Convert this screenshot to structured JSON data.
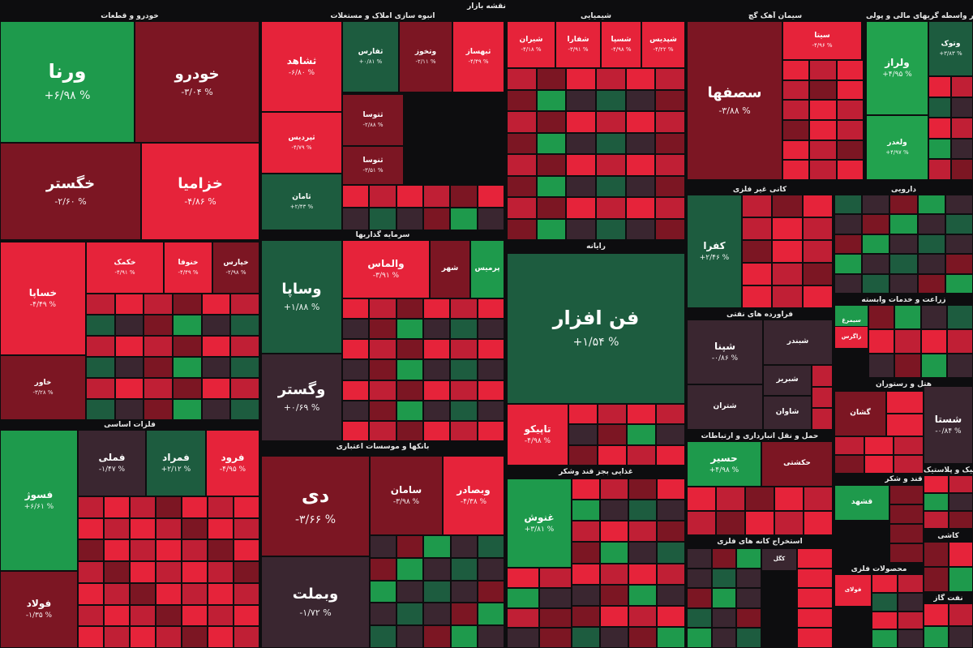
{
  "page_title": "نقشه بازار",
  "chart_data": {
    "type": "treemap",
    "title": "نقشه بازار",
    "colors": {
      "up_strong": "#1e9a4c",
      "up_light": "#22a24e",
      "up_dark": "#1d5c3f",
      "down_strong": "#e6233a",
      "down_mid": "#c01f35",
      "down_dark": "#7c1623",
      "neutral": "#3a2630"
    },
    "sectors": [
      {
        "name": "خودرو و قطعات"
      },
      {
        "name": "انبوه سازی املاک و مستغلات"
      },
      {
        "name": "شیمیایی"
      },
      {
        "name": "سیمان آهک گچ"
      },
      {
        "name": "سایر واسطه گریهای مالی و پولی"
      },
      {
        "name": "سرمایه گذاریها"
      },
      {
        "name": "رایانه"
      },
      {
        "name": "کانی غیر فلزی"
      },
      {
        "name": "دارویی"
      },
      {
        "name": "فلزات اساسی"
      },
      {
        "name": "بانکها و موسسات اعتباری"
      },
      {
        "name": "فراورده های نفتی"
      },
      {
        "name": "زراعت و خدمات وابسته"
      },
      {
        "name": "هتل و رستوران"
      },
      {
        "name": "غذایی بجز قند وشکر"
      },
      {
        "name": "حمل و نقل انبارداری و ارتباطات"
      },
      {
        "name": "قند و شکر"
      },
      {
        "name": "لاستیک و پلاستیک"
      },
      {
        "name": "استخراج کانه های فلزی"
      },
      {
        "name": "محصولات فلزی"
      },
      {
        "name": "کاشی"
      },
      {
        "name": "نفت گاز"
      }
    ],
    "tiles": [
      {
        "name": "ورنا",
        "change": "+۶/۹۸ %",
        "tone": "up_strong"
      },
      {
        "name": "خودرو",
        "change": "-۳/۰۴ %",
        "tone": "down_dark"
      },
      {
        "name": "خگستر",
        "change": "-۲/۶۰ %",
        "tone": "down_dark"
      },
      {
        "name": "خزامیا",
        "change": "-۴/۸۶ %",
        "tone": "down_strong"
      },
      {
        "name": "خساپا",
        "change": "-۴/۴۹ %",
        "tone": "down_strong"
      },
      {
        "name": "خکمک",
        "change": "-۴/۹۱ %",
        "tone": "down_strong"
      },
      {
        "name": "خنوفا",
        "change": "-۴/۴۹ %",
        "tone": "down_strong"
      },
      {
        "name": "خپارس",
        "change": "-۲/۹۸ %",
        "tone": "down_dark"
      },
      {
        "name": "خاور",
        "change": "-۳/۲۸ %",
        "tone": "down_dark"
      },
      {
        "name": "ثشاهد",
        "change": "-۶/۸۰ %",
        "tone": "down_strong"
      },
      {
        "name": "ثفارس",
        "change": "+۰/۸۱ %",
        "tone": "up_dark"
      },
      {
        "name": "وتخوز",
        "change": "-۲/۱۱ %",
        "tone": "down_dark"
      },
      {
        "name": "ثبهساز",
        "change": "-۴/۴۹ %",
        "tone": "down_strong"
      },
      {
        "name": "ثپردیس",
        "change": "-۴/۷۹ %",
        "tone": "down_strong"
      },
      {
        "name": "ثتوسا",
        "change": "-۲/۸۸ %",
        "tone": "down_dark"
      },
      {
        "name": "ثنوسا",
        "change": "-۳/۵۱ %",
        "tone": "down_dark"
      },
      {
        "name": "ثامان",
        "change": "+۲/۴۳ %",
        "tone": "up_dark"
      },
      {
        "name": "شیران",
        "change": "-۴/۱۸ %",
        "tone": "down_strong"
      },
      {
        "name": "شفارا",
        "change": "-۳/۹۱ %",
        "tone": "down_strong"
      },
      {
        "name": "شسپا",
        "change": "-۴/۹۸ %",
        "tone": "down_strong"
      },
      {
        "name": "شپدیس",
        "change": "-۴/۲۲ %",
        "tone": "down_strong"
      },
      {
        "name": "سصفها",
        "change": "-۳/۸۸ %",
        "tone": "down_dark"
      },
      {
        "name": "سیتا",
        "change": "-۴/۹۶ %",
        "tone": "down_strong"
      },
      {
        "name": "وتوک",
        "change": "+۳/۸۳ %",
        "tone": "up_dark"
      },
      {
        "name": "ولراز",
        "change": "+۴/۹۵ %",
        "tone": "up_light"
      },
      {
        "name": "ولغدر",
        "change": "+۴/۹۷ %",
        "tone": "up_light"
      },
      {
        "name": "وساپا",
        "change": "+۱/۸۸ %",
        "tone": "up_dark"
      },
      {
        "name": "والماس",
        "change": "-۳/۹۱ %",
        "tone": "down_strong"
      },
      {
        "name": "شهر",
        "change": "",
        "tone": "down_dark"
      },
      {
        "name": "پرمیس",
        "change": "",
        "tone": "up_strong"
      },
      {
        "name": "وگستر",
        "change": "+۰/۶۹ %",
        "tone": "neutral"
      },
      {
        "name": "فن افزار",
        "change": "+۱/۵۴ %",
        "tone": "up_dark"
      },
      {
        "name": "کفرا",
        "change": "+۲/۴۶ %",
        "tone": "up_dark"
      },
      {
        "name": "شپنا",
        "change": "-۰/۸۶ %",
        "tone": "neutral"
      },
      {
        "name": "شبندر",
        "change": "",
        "tone": "neutral"
      },
      {
        "name": "شبریز",
        "change": "",
        "tone": "neutral"
      },
      {
        "name": "شتران",
        "change": "",
        "tone": "neutral"
      },
      {
        "name": "شاوان",
        "change": "",
        "tone": "neutral"
      },
      {
        "name": "سیمرغ",
        "change": "",
        "tone": "up_strong"
      },
      {
        "name": "زاگرس",
        "change": "",
        "tone": "down_strong"
      },
      {
        "name": "فسوژ",
        "change": "+۶/۶۱ %",
        "tone": "up_strong"
      },
      {
        "name": "فملی",
        "change": "-۱/۴۷ %",
        "tone": "neutral"
      },
      {
        "name": "فمراد",
        "change": "+۲/۱۲ %",
        "tone": "up_dark"
      },
      {
        "name": "فرود",
        "change": "-۴/۹۵ %",
        "tone": "down_strong"
      },
      {
        "name": "فولاد",
        "change": "-۱/۳۵ %",
        "tone": "down_dark"
      },
      {
        "name": "دی",
        "change": "-۳/۶۶ %",
        "tone": "down_dark"
      },
      {
        "name": "سامان",
        "change": "-۳/۹۸ %",
        "tone": "down_dark"
      },
      {
        "name": "وبصادر",
        "change": "-۴/۳۸ %",
        "tone": "down_strong"
      },
      {
        "name": "وبملت",
        "change": "-۱/۷۲ %",
        "tone": "neutral"
      },
      {
        "name": "تاپیکو",
        "change": "-۴/۹۸ %",
        "tone": "down_strong"
      },
      {
        "name": "غنوش",
        "change": "+۳/۸۱ %",
        "tone": "up_strong"
      },
      {
        "name": "حسیر",
        "change": "+۴/۹۸ %",
        "tone": "up_strong"
      },
      {
        "name": "حکشتی",
        "change": "",
        "tone": "down_dark"
      },
      {
        "name": "شستا",
        "change": "-۰/۸۴ %",
        "tone": "neutral"
      },
      {
        "name": "گشان",
        "change": "",
        "tone": "down_dark"
      },
      {
        "name": "قشهد",
        "change": "",
        "tone": "up_strong"
      },
      {
        "name": "کگل",
        "change": "",
        "tone": "neutral"
      },
      {
        "name": "فولای",
        "change": "",
        "tone": "down_strong"
      }
    ]
  }
}
